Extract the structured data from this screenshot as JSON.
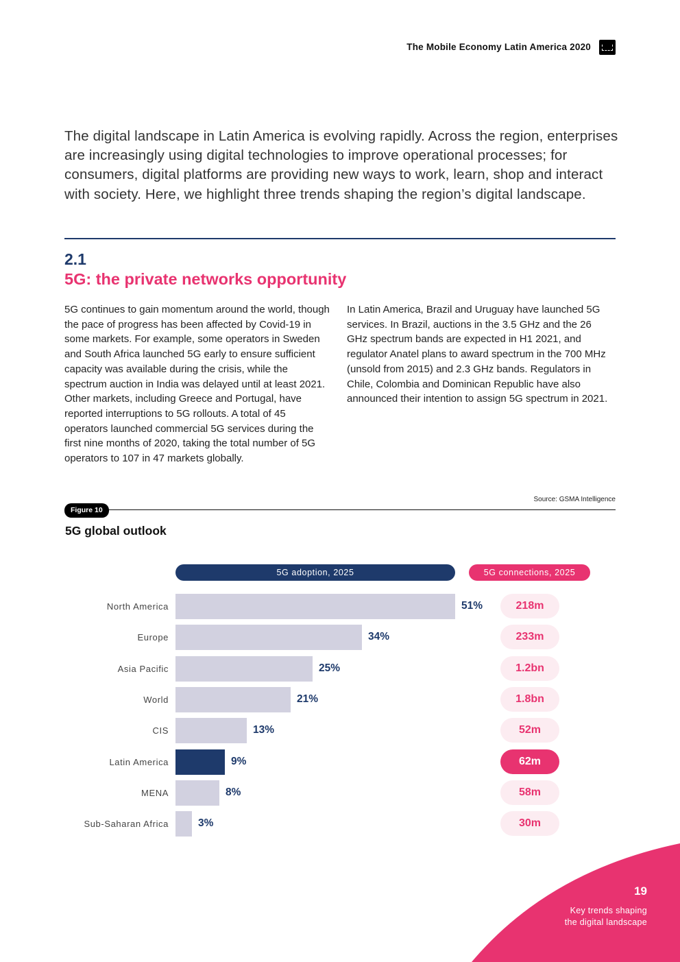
{
  "header": {
    "title": "The Mobile Economy Latin America 2020",
    "logo_icon": "gsma-logo-icon"
  },
  "intro": "The digital landscape in Latin America is evolving rapidly. Across the region, enterprises are increasingly using digital technologies to improve operational processes; for consumers, digital platforms are providing new ways to work, learn, shop and interact with society. Here, we highlight three trends shaping the region’s digital landscape.",
  "section": {
    "number": "2.1",
    "title": "5G: the private networks opportunity",
    "col1": "5G continues to gain momentum around the world, though the pace of progress has been affected by Covid-19 in some markets. For example, some operators in Sweden and South Africa launched 5G early to ensure sufficient capacity was available during the crisis, while the spectrum auction in India was delayed until at least 2021. Other markets, including Greece and Portugal, have reported interruptions to 5G rollouts. A total of 45 operators launched commercial 5G services during the first nine months of 2020, taking the total number of 5G operators to 107 in 47 markets globally.",
    "col2": "In Latin America, Brazil and Uruguay have launched 5G services. In Brazil, auctions in the 3.5 GHz and the 26 GHz spectrum bands are expected in H1 2021, and regulator Anatel plans to award spectrum in the 700 MHz (unsold from 2015) and 2.3 GHz bands. Regulators in Chile, Colombia and Dominican Republic have also announced their intention to assign 5G spectrum in 2021."
  },
  "figure": {
    "label": "Figure 10",
    "source": "Source: GSMA Intelligence",
    "title": "5G global outlook"
  },
  "chart_data": {
    "type": "bar",
    "orientation": "horizontal",
    "headers": {
      "adoption": "5G adoption, 2025",
      "connections": "5G connections, 2025"
    },
    "categories": [
      "North America",
      "Europe",
      "Asia Pacific",
      "World",
      "CIS",
      "Latin America",
      "MENA",
      "Sub-Saharan Africa"
    ],
    "values": [
      51,
      34,
      25,
      21,
      13,
      9,
      8,
      3
    ],
    "value_labels": [
      "51%",
      "34%",
      "25%",
      "21%",
      "13%",
      "9%",
      "8%",
      "3%"
    ],
    "connections": [
      "218m",
      "233m",
      "1.2bn",
      "1.8bn",
      "52m",
      "62m",
      "58m",
      "30m"
    ],
    "highlight": "Latin America",
    "colors": {
      "bar": "#d2d1e0",
      "highlight_bar": "#1e3a6b",
      "pill": "#fcecf1",
      "highlight_pill": "#e83370",
      "accent_pink": "#e83370",
      "accent_navy": "#1e3a6b"
    }
  },
  "footer": {
    "page_number": "19",
    "section_line1": "Key trends shaping",
    "section_line2": "the digital landscape"
  }
}
